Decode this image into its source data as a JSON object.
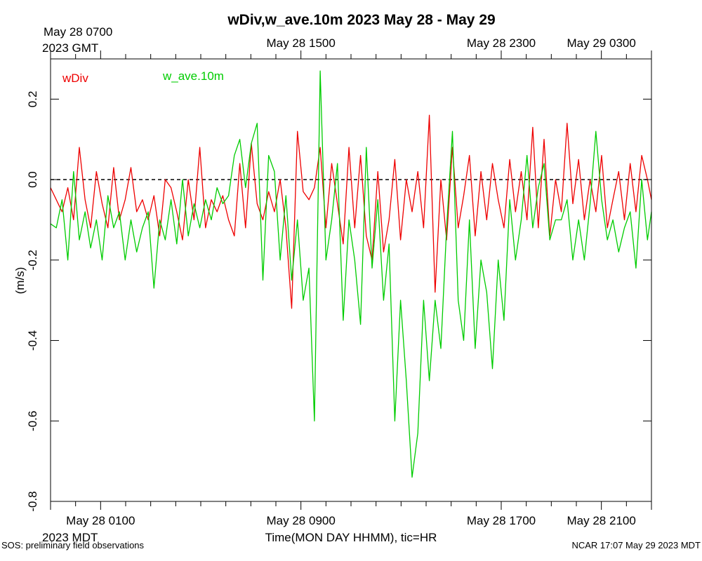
{
  "chart_data": {
    "type": "line",
    "title": "wDiv,w_ave.10m 2023 May 28 - May 29",
    "ylabel": "(m/s)",
    "xlabel": "Time(MON DAY HHMM), tic=HR",
    "ylim": [
      -0.8,
      0.3
    ],
    "y_ticks": [
      -0.8,
      -0.6,
      -0.4,
      -0.2,
      0.0,
      0.2
    ],
    "y_tick_labels": [
      "-0.8",
      "-0.6",
      "-0.4",
      "-0.2",
      "0.0",
      "0.2"
    ],
    "x_start_hour_mdt": -1,
    "x_end_hour_mdt": 23,
    "x_tick_step_hours": 1,
    "reference_line": 0.0,
    "bottom_axis": {
      "timezone_label": "2023 MDT",
      "labels": [
        {
          "hour": 1,
          "text": "May 28 0100"
        },
        {
          "hour": 9,
          "text": "May 28 0900"
        },
        {
          "hour": 17,
          "text": "May 28 1700"
        },
        {
          "hour": 21,
          "text": "May 28 2100"
        }
      ]
    },
    "top_axis": {
      "first_label": "May 28 0700",
      "timezone_label": "2023 GMT",
      "labels": [
        {
          "hour": 9,
          "text": "May 28 1500"
        },
        {
          "hour": 17,
          "text": "May 28 2300"
        },
        {
          "hour": 21,
          "text": "May 29 0300"
        }
      ]
    },
    "legend": [
      "wDiv",
      "w_ave.10m"
    ],
    "series": [
      {
        "name": "wDiv",
        "color": "#ee0000",
        "x": [
          -1,
          -0.77,
          -0.54,
          -0.31,
          -0.08,
          0.15,
          0.38,
          0.6,
          0.83,
          1.06,
          1.29,
          1.52,
          1.75,
          1.98,
          2.21,
          2.44,
          2.67,
          2.9,
          3.13,
          3.36,
          3.58,
          3.81,
          4.04,
          4.27,
          4.5,
          4.73,
          4.96,
          5.19,
          5.42,
          5.65,
          5.88,
          6.11,
          6.34,
          6.56,
          6.79,
          7.02,
          7.25,
          7.48,
          7.71,
          7.94,
          8.17,
          8.4,
          8.63,
          8.86,
          9.09,
          9.32,
          9.54,
          9.77,
          10.0,
          10.23,
          10.46,
          10.69,
          10.92,
          11.15,
          11.38,
          11.61,
          11.84,
          12.07,
          12.3,
          12.52,
          12.75,
          12.98,
          13.21,
          13.44,
          13.67,
          13.9,
          14.13,
          14.36,
          14.59,
          14.82,
          15.05,
          15.28,
          15.5,
          15.73,
          15.96,
          16.19,
          16.42,
          16.65,
          16.88,
          17.11,
          17.34,
          17.57,
          17.8,
          18.03,
          18.26,
          18.48,
          18.71,
          18.94,
          19.17,
          19.4,
          19.63,
          19.86,
          20.09,
          20.32,
          20.55,
          20.78,
          21.01,
          21.24,
          21.46,
          21.69,
          21.92,
          22.15,
          22.38,
          22.61,
          22.84,
          23.0
        ],
        "y": [
          -0.02,
          -0.05,
          -0.08,
          -0.02,
          -0.1,
          0.08,
          -0.05,
          -0.12,
          0.02,
          -0.06,
          -0.12,
          0.03,
          -0.1,
          -0.05,
          0.03,
          -0.08,
          -0.05,
          -0.1,
          -0.04,
          -0.14,
          0.0,
          -0.02,
          -0.08,
          -0.15,
          0.0,
          -0.1,
          0.08,
          -0.12,
          -0.05,
          -0.08,
          -0.04,
          -0.1,
          -0.14,
          0.04,
          -0.12,
          0.09,
          -0.06,
          -0.1,
          -0.03,
          -0.08,
          0.0,
          -0.12,
          -0.32,
          0.12,
          -0.03,
          -0.05,
          -0.02,
          0.08,
          -0.12,
          0.04,
          -0.06,
          -0.16,
          0.08,
          -0.12,
          0.06,
          -0.14,
          -0.2,
          0.02,
          -0.18,
          -0.1,
          0.05,
          -0.15,
          0.0,
          -0.08,
          0.02,
          -0.12,
          0.16,
          -0.28,
          0.0,
          -0.15,
          0.08,
          -0.12,
          -0.04,
          0.06,
          -0.14,
          0.02,
          -0.1,
          0.04,
          -0.05,
          -0.12,
          0.05,
          -0.08,
          0.02,
          -0.1,
          0.13,
          -0.12,
          0.1,
          -0.14,
          0.0,
          -0.08,
          0.14,
          -0.06,
          0.05,
          -0.1,
          0.0,
          -0.08,
          0.06,
          -0.12,
          -0.05,
          0.02,
          -0.1,
          0.04,
          -0.08,
          0.06,
          0.0,
          -0.05
        ],
        "description": "solid red line"
      },
      {
        "name": "w_ave.10m",
        "color": "#00cc00",
        "x": [
          -1,
          -0.77,
          -0.54,
          -0.31,
          -0.08,
          0.15,
          0.38,
          0.6,
          0.83,
          1.06,
          1.29,
          1.52,
          1.75,
          1.98,
          2.21,
          2.44,
          2.67,
          2.9,
          3.13,
          3.36,
          3.58,
          3.81,
          4.04,
          4.27,
          4.5,
          4.73,
          4.96,
          5.19,
          5.42,
          5.65,
          5.88,
          6.11,
          6.34,
          6.56,
          6.79,
          7.02,
          7.25,
          7.48,
          7.71,
          7.94,
          8.17,
          8.4,
          8.63,
          8.86,
          9.09,
          9.32,
          9.54,
          9.77,
          10.0,
          10.23,
          10.46,
          10.69,
          10.92,
          11.15,
          11.38,
          11.61,
          11.84,
          12.07,
          12.3,
          12.52,
          12.75,
          12.98,
          13.21,
          13.44,
          13.67,
          13.9,
          14.13,
          14.36,
          14.59,
          14.82,
          15.05,
          15.28,
          15.5,
          15.73,
          15.96,
          16.19,
          16.42,
          16.65,
          16.88,
          17.11,
          17.34,
          17.57,
          17.8,
          18.03,
          18.26,
          18.48,
          18.71,
          18.94,
          19.17,
          19.4,
          19.63,
          19.86,
          20.09,
          20.32,
          20.55,
          20.78,
          21.01,
          21.24,
          21.46,
          21.69,
          21.92,
          22.15,
          22.38,
          22.61,
          22.84,
          23.0
        ],
        "y": [
          -0.11,
          -0.12,
          -0.05,
          -0.2,
          0.02,
          -0.15,
          -0.08,
          -0.17,
          -0.1,
          -0.2,
          -0.04,
          -0.12,
          -0.08,
          -0.2,
          -0.1,
          -0.18,
          -0.12,
          -0.08,
          -0.27,
          -0.1,
          -0.15,
          -0.05,
          -0.16,
          0.0,
          -0.14,
          -0.06,
          -0.12,
          -0.05,
          -0.1,
          -0.02,
          -0.06,
          -0.04,
          0.06,
          0.1,
          -0.02,
          0.09,
          0.14,
          -0.25,
          0.06,
          0.02,
          -0.2,
          -0.04,
          -0.25,
          -0.1,
          -0.3,
          -0.22,
          -0.6,
          0.27,
          -0.2,
          -0.1,
          0.04,
          -0.35,
          -0.1,
          -0.2,
          -0.36,
          0.08,
          -0.22,
          -0.05,
          -0.3,
          -0.16,
          -0.6,
          -0.3,
          -0.5,
          -0.74,
          -0.63,
          -0.3,
          -0.5,
          -0.3,
          -0.42,
          -0.12,
          0.12,
          -0.3,
          -0.4,
          -0.1,
          -0.42,
          -0.2,
          -0.28,
          -0.47,
          -0.2,
          -0.35,
          -0.05,
          -0.2,
          -0.1,
          0.06,
          -0.12,
          -0.02,
          0.04,
          -0.15,
          -0.1,
          -0.1,
          -0.05,
          -0.2,
          -0.1,
          -0.2,
          -0.06,
          0.12,
          -0.05,
          -0.15,
          -0.1,
          -0.18,
          -0.12,
          -0.08,
          -0.22,
          0.0,
          -0.15,
          -0.08
        ],
        "description": "solid green line"
      }
    ]
  },
  "footer": {
    "left": "SOS: preliminary field observations",
    "right": "NCAR 17:07 May 29 2023 MDT"
  }
}
